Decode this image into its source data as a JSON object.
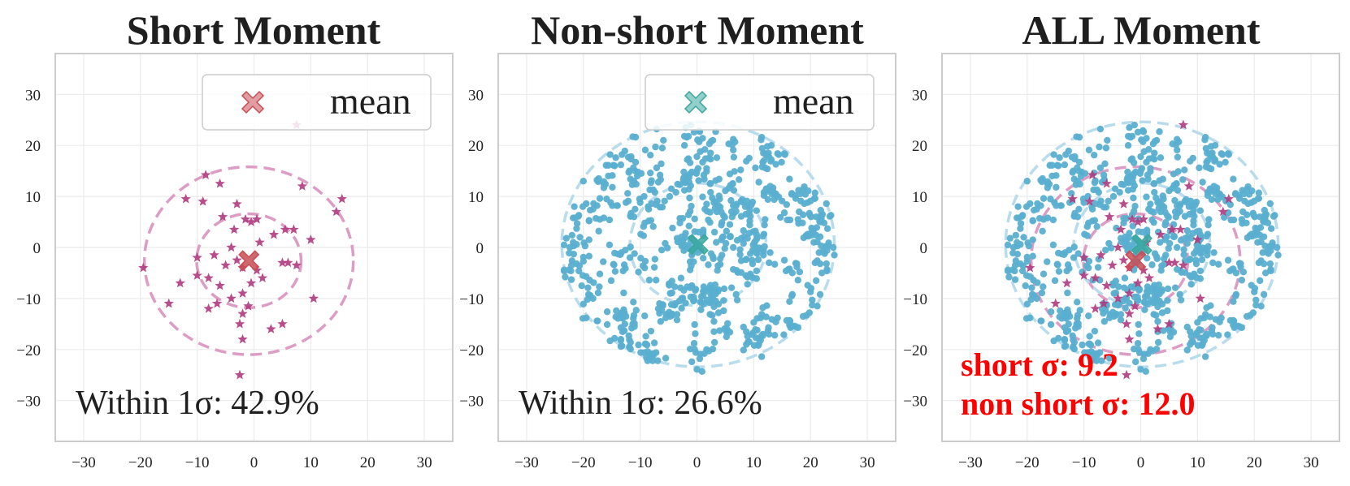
{
  "chart_data": [
    {
      "type": "scatter",
      "title": "Short Moment",
      "xlim": [
        -35,
        35
      ],
      "ylim": [
        -38,
        38
      ],
      "xticks": [
        -30,
        -20,
        -10,
        0,
        10,
        20,
        30
      ],
      "yticks": [
        30,
        20,
        10,
        0,
        -10,
        -20,
        -30
      ],
      "grid": true,
      "legend": {
        "label": "mean",
        "placement": "top-right"
      },
      "colors": {
        "points": "#b03a80",
        "mean": "#c94d55",
        "circles": "#dd9cc3"
      },
      "marker": "star",
      "mean": [
        -0.9,
        -2.6
      ],
      "sigma_circles": [
        {
          "center": [
            -0.9,
            -2.6
          ],
          "radius": 9.2
        },
        {
          "center": [
            -0.9,
            -2.6
          ],
          "radius": 18.4
        }
      ],
      "annotation": "Within 1σ: 42.9%",
      "points": [
        [
          -8.5,
          14.2
        ],
        [
          -6,
          12.5
        ],
        [
          -12,
          9.5
        ],
        [
          -9,
          9
        ],
        [
          -3,
          8.5
        ],
        [
          -5.5,
          6
        ],
        [
          -1.5,
          5.5
        ],
        [
          -0.5,
          5
        ],
        [
          0.5,
          5.5
        ],
        [
          5.5,
          3.5
        ],
        [
          8.5,
          12
        ],
        [
          15.5,
          9.5
        ],
        [
          14.5,
          7
        ],
        [
          7.5,
          24
        ],
        [
          3.5,
          2.5
        ],
        [
          -19.5,
          -4
        ],
        [
          -13,
          -7
        ],
        [
          -15,
          -11
        ],
        [
          -10,
          -5.5
        ],
        [
          -8,
          -6
        ],
        [
          -6,
          -7.5
        ],
        [
          -5,
          -3.5
        ],
        [
          -3,
          -2.5
        ],
        [
          -2,
          -4
        ],
        [
          -4,
          0
        ],
        [
          -7,
          -1.5
        ],
        [
          -10,
          -2
        ],
        [
          -6.5,
          -11
        ],
        [
          -4,
          -10
        ],
        [
          -2,
          -9
        ],
        [
          -1,
          -11.5
        ],
        [
          0.5,
          -4.5
        ],
        [
          1.5,
          -6
        ],
        [
          -2,
          -13
        ],
        [
          -2.5,
          -15
        ],
        [
          -2,
          -18
        ],
        [
          -2.5,
          -25
        ],
        [
          3,
          -16
        ],
        [
          5,
          -15
        ],
        [
          5,
          -3
        ],
        [
          6,
          -3
        ],
        [
          7,
          3.5
        ],
        [
          10,
          1.5
        ],
        [
          10.5,
          -10
        ],
        [
          7.5,
          -3.5
        ],
        [
          -8,
          -12
        ],
        [
          -3.5,
          3.5
        ],
        [
          1,
          1
        ],
        [
          -0.5,
          -7
        ]
      ]
    },
    {
      "type": "scatter",
      "title": "Non-short Moment",
      "xlim": [
        -35,
        35
      ],
      "ylim": [
        -38,
        38
      ],
      "xticks": [
        -30,
        -20,
        -10,
        0,
        10,
        20,
        30
      ],
      "yticks": [
        30,
        20,
        10,
        0,
        -10,
        -20,
        -30
      ],
      "grid": true,
      "legend": {
        "label": "mean",
        "placement": "top-right"
      },
      "colors": {
        "points": "#5aafd0",
        "mean": "#3aa89f",
        "circles": "#b9dced"
      },
      "marker": "dot",
      "mean": [
        0.2,
        0.6
      ],
      "sigma_circles": [
        {
          "center": [
            0.2,
            0.6
          ],
          "radius": 12.0
        },
        {
          "center": [
            0.2,
            0.6
          ],
          "radius": 24.0
        }
      ],
      "annotation": "Within 1σ: 26.6%",
      "point_cloud": {
        "count": 780,
        "radius": 24.5,
        "seed": 17
      }
    },
    {
      "type": "scatter",
      "title": "ALL Moment",
      "xlim": [
        -35,
        35
      ],
      "ylim": [
        -38,
        38
      ],
      "xticks": [
        -30,
        -20,
        -10,
        0,
        10,
        20,
        30
      ],
      "yticks": [
        30,
        20,
        10,
        0,
        -10,
        -20,
        -30
      ],
      "grid": true,
      "colors": {
        "short_points": "#b03a80",
        "non_short_points": "#5aafd0",
        "short_mean": "#c94d55",
        "non_short_mean": "#3aa89f",
        "short_circles": "#dd9cc3",
        "non_short_circles": "#b9dced",
        "annotation": "#ff0000"
      },
      "short_mean": [
        -0.9,
        -2.6
      ],
      "non_short_mean": [
        0.2,
        0.6
      ],
      "sigma_circles": [
        {
          "group": "short",
          "center": [
            -0.9,
            -2.6
          ],
          "radius": 9.2
        },
        {
          "group": "short",
          "center": [
            -0.9,
            -2.6
          ],
          "radius": 18.4
        },
        {
          "group": "non_short",
          "center": [
            0.2,
            0.6
          ],
          "radius": 12.0
        },
        {
          "group": "non_short",
          "center": [
            0.2,
            0.6
          ],
          "radius": 24.0
        }
      ],
      "annotations": [
        "short σ: 9.2",
        "non short σ: 12.0"
      ]
    }
  ]
}
